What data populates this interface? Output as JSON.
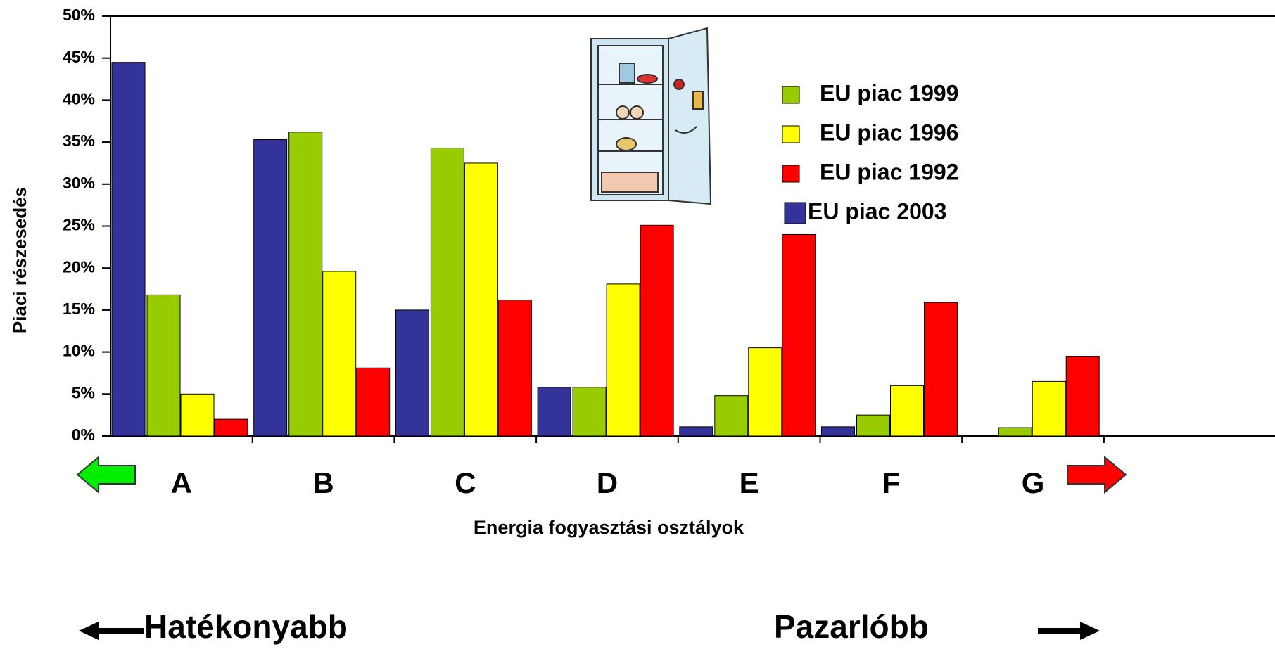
{
  "chart_data": {
    "type": "bar",
    "y_label": "Piaci részesedés",
    "x_label": "Energia fogyasztási osztályok",
    "left_note": "Hatékonyabb",
    "right_note": "Pazarlóbb",
    "categories": [
      "A",
      "B",
      "C",
      "D",
      "E",
      "F",
      "G"
    ],
    "series": [
      {
        "name": "EU piac 1999",
        "color": "#99cc00",
        "values": [
          16.8,
          36.2,
          34.3,
          5.8,
          4.8,
          2.5,
          1
        ]
      },
      {
        "name": "EU piac 1996",
        "color": "#ffff00",
        "values": [
          5,
          19.6,
          32.5,
          18.1,
          10.5,
          6,
          6.5
        ]
      },
      {
        "name": "EU piac 1992",
        "color": "#ff0000",
        "values": [
          2,
          8.1,
          16.2,
          25.1,
          24,
          15.9,
          9.5
        ]
      },
      {
        "name": "EU piac 2003",
        "color": "#333399",
        "values": [
          44.5,
          35.3,
          15,
          5.8,
          1.1,
          1.1,
          null
        ]
      }
    ],
    "ylim": [
      0,
      50
    ],
    "yticks": [
      {
        "value": 0,
        "label": "0%"
      },
      {
        "value": 5,
        "label": "5%"
      },
      {
        "value": 10,
        "label": "10%"
      },
      {
        "value": 15,
        "label": "15%"
      },
      {
        "value": 20,
        "label": "20%"
      },
      {
        "value": 25,
        "label": "25%"
      },
      {
        "value": 30,
        "label": "30%"
      },
      {
        "value": 35,
        "label": "35%"
      },
      {
        "value": 40,
        "label": "40%"
      },
      {
        "value": 45,
        "label": "45%"
      },
      {
        "value": 50,
        "label": "50%"
      }
    ],
    "grid": false
  }
}
